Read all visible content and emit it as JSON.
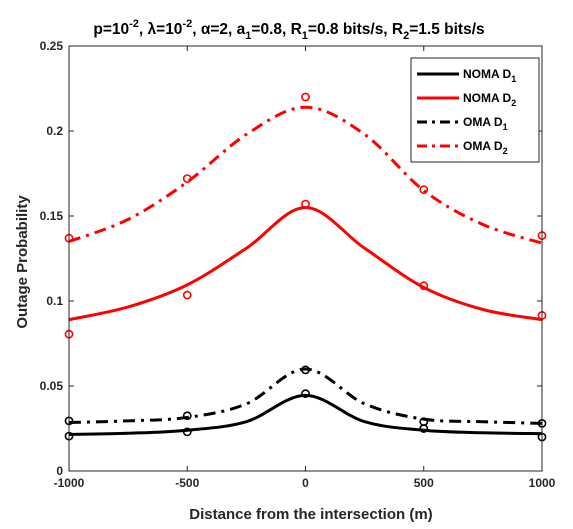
{
  "chart_data": {
    "type": "line",
    "title": "p=10^-2, λ=10^-2, α=2, a_1=0.8, R_1=0.8 bits/s, R_2=1.5 bits/s",
    "xlabel": "Distance from the intersection (m)",
    "ylabel": "Outage Probability",
    "xlim": [
      -1000,
      1000
    ],
    "ylim": [
      0,
      0.25
    ],
    "xticks": [
      -1000,
      -500,
      0,
      500,
      1000
    ],
    "xtick_labels": [
      "-1000",
      "-500",
      "0",
      "500",
      "1000"
    ],
    "yticks": [
      0,
      0.05,
      0.1,
      0.15,
      0.2,
      0.25
    ],
    "ytick_labels": [
      "0",
      "0.05",
      "0.1",
      "0.15",
      "0.2",
      "0.25"
    ],
    "legend_position": "top-right",
    "grid": false,
    "marker_x": [
      -1000,
      -500,
      0,
      500,
      1000
    ],
    "series": [
      {
        "name": "NOMA D1",
        "color": "#000000",
        "style": "solid",
        "analytical": [
          0.0215,
          0.0222,
          0.024,
          0.029,
          0.0445,
          0.029,
          0.024,
          0.0225,
          0.022
        ],
        "simulation": [
          0.0205,
          0.023,
          0.0455,
          0.025,
          0.02
        ]
      },
      {
        "name": "NOMA D2",
        "color": "#ff0000",
        "style": "solid",
        "analytical": [
          0.089,
          0.0965,
          0.1095,
          0.131,
          0.155,
          0.131,
          0.108,
          0.095,
          0.089
        ],
        "simulation": [
          0.0805,
          0.1035,
          0.157,
          0.109,
          0.0915
        ]
      },
      {
        "name": "OMA D1",
        "color": "#000000",
        "style": "dashdot",
        "analytical": [
          0.0285,
          0.0295,
          0.0315,
          0.0395,
          0.06,
          0.0395,
          0.0305,
          0.029,
          0.028
        ],
        "simulation": [
          0.0295,
          0.0325,
          0.0595,
          0.029,
          0.028
        ]
      },
      {
        "name": "OMA D2",
        "color": "#ff0000",
        "style": "dashdot",
        "analytical": [
          0.135,
          0.148,
          0.17,
          0.198,
          0.214,
          0.198,
          0.165,
          0.145,
          0.134
        ],
        "simulation": [
          0.137,
          0.172,
          0.22,
          0.1655,
          0.1385
        ]
      }
    ],
    "analytical_x": [
      -1000,
      -750,
      -500,
      -250,
      0,
      250,
      500,
      750,
      1000
    ]
  }
}
